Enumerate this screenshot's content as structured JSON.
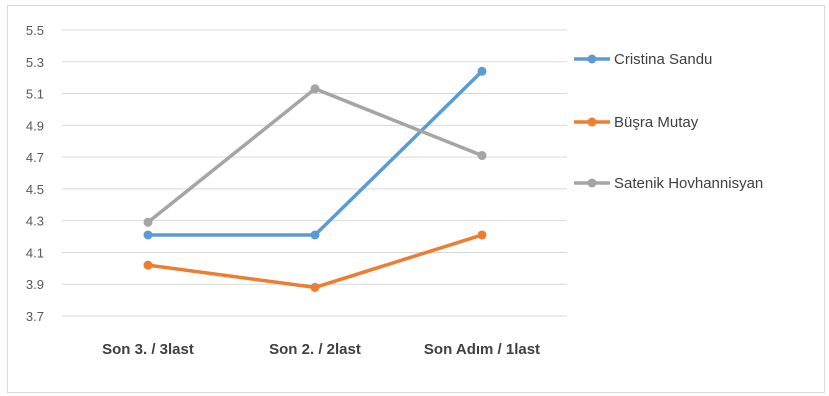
{
  "chart_data": {
    "type": "line",
    "categories": [
      "Son 3. / 3last",
      "Son 2. / 2last",
      "Son Adım / 1last"
    ],
    "series": [
      {
        "name": "Cristina Sandu",
        "color": "#5b9bd5",
        "values": [
          4.21,
          4.21,
          5.24
        ]
      },
      {
        "name": "Büşra Mutay",
        "color": "#ed7d31",
        "values": [
          4.02,
          3.88,
          4.21
        ]
      },
      {
        "name": "Satenik Hovhannisyan",
        "color": "#a5a5a5",
        "values": [
          4.29,
          5.13,
          4.71
        ]
      }
    ],
    "y_ticks": [
      "5.5",
      "5.3",
      "5.1",
      "4.9",
      "4.7",
      "4.5",
      "4.3",
      "4.1",
      "3.9",
      "3.7"
    ],
    "ylim": [
      3.7,
      5.5
    ],
    "grid": true,
    "legend_position": "right",
    "title": "",
    "xlabel": "",
    "ylabel": ""
  }
}
